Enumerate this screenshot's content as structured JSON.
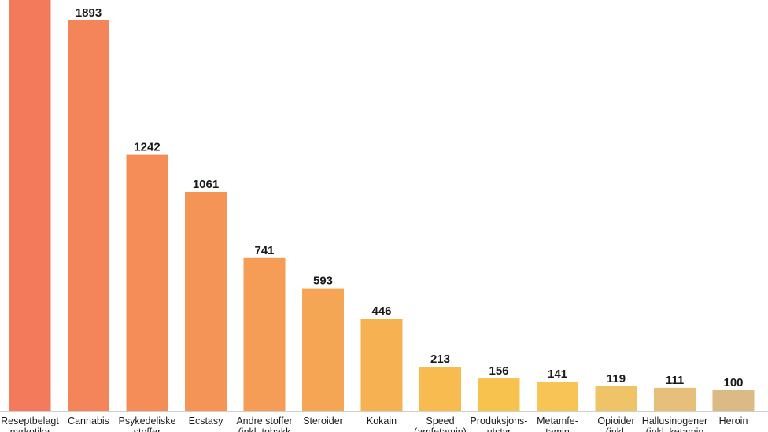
{
  "chart_data": {
    "type": "bar",
    "title": "",
    "xlabel": "",
    "ylabel": "",
    "categories": [
      [
        "Reseptbelagt",
        "narkotika"
      ],
      [
        "Cannabis"
      ],
      [
        "Psykedeliske",
        "stoffer"
      ],
      [
        "Ecstasy"
      ],
      [
        "Andre stoffer",
        "(inkl. tobakk"
      ],
      [
        "Steroider"
      ],
      [
        "Kokain"
      ],
      [
        "Speed",
        "(amfetamin)"
      ],
      [
        "Produksjons-",
        "utstyr"
      ],
      [
        "Metamfe-",
        "tamin"
      ],
      [
        "Opioider",
        "(inkl."
      ],
      [
        "Hallusinogener",
        "(inkl. ketamin"
      ],
      [
        "Heroin"
      ]
    ],
    "values": [
      null,
      1893,
      1242,
      1061,
      741,
      593,
      446,
      213,
      156,
      141,
      119,
      111,
      100
    ],
    "value_labels": [
      "",
      "1893",
      "1242",
      "1061",
      "741",
      "593",
      "446",
      "213",
      "156",
      "141",
      "119",
      "111",
      "100"
    ],
    "colors": [
      "#f47a5c",
      "#f4855a",
      "#f48d58",
      "#f59457",
      "#f59c56",
      "#f5a654",
      "#f6b152",
      "#f7bb50",
      "#f8c24e",
      "#f6c553",
      "#efc466",
      "#e6c07a",
      "#dcba85"
    ],
    "legend": "none",
    "grid": false
  }
}
